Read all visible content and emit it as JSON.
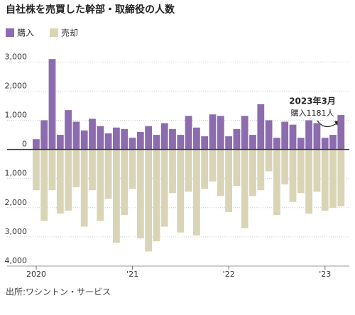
{
  "chart_data": {
    "type": "bar",
    "title": "自社株を売買した幹部・取締役の人数",
    "categories": [
      "2020",
      null,
      null,
      null,
      null,
      null,
      null,
      null,
      null,
      null,
      null,
      null,
      "'21",
      null,
      null,
      null,
      null,
      null,
      null,
      null,
      null,
      null,
      null,
      null,
      "'22",
      null,
      null,
      null,
      null,
      null,
      null,
      null,
      null,
      null,
      null,
      null,
      "'23",
      null,
      null
    ],
    "series": [
      {
        "name": "購入",
        "color": "#8c6bae",
        "values": [
          350,
          1000,
          3100,
          500,
          1350,
          950,
          650,
          1050,
          800,
          550,
          750,
          700,
          400,
          600,
          800,
          500,
          900,
          700,
          500,
          1150,
          750,
          450,
          1200,
          1150,
          450,
          700,
          1150,
          500,
          1550,
          1000,
          400,
          950,
          850,
          400,
          1000,
          900,
          400,
          500,
          1181
        ]
      },
      {
        "name": "売却",
        "color": "#d9d4b5",
        "values": [
          -1400,
          -2450,
          -1400,
          -2200,
          -2100,
          -1300,
          -2650,
          -1400,
          -2450,
          -1700,
          -3200,
          -2250,
          -1350,
          -3050,
          -3500,
          -3150,
          -2650,
          -1500,
          -2850,
          -1450,
          -2950,
          -1350,
          -1100,
          -1600,
          -2150,
          -1250,
          -2700,
          -1600,
          -1400,
          -750,
          -2250,
          -1200,
          -1800,
          -1500,
          -2200,
          -1450,
          -2100,
          -2000,
          -1950
        ]
      }
    ],
    "ylim": [
      -4000,
      3300
    ],
    "yticks": [
      {
        "value": 3000,
        "label": "3,000"
      },
      {
        "value": 2000,
        "label": "2,000"
      },
      {
        "value": 1000,
        "label": "1,000"
      },
      0,
      {
        "value": -1000,
        "label": "1,000"
      },
      {
        "value": -2000,
        "label": "2,000"
      },
      {
        "value": -3000,
        "label": "3,000"
      },
      {
        "value": -4000,
        "label": "4,000"
      }
    ],
    "grid": true,
    "annotation": {
      "title": "2023年3月",
      "text": "購入1181人"
    },
    "source": "出所:ワシントン・サービス"
  }
}
